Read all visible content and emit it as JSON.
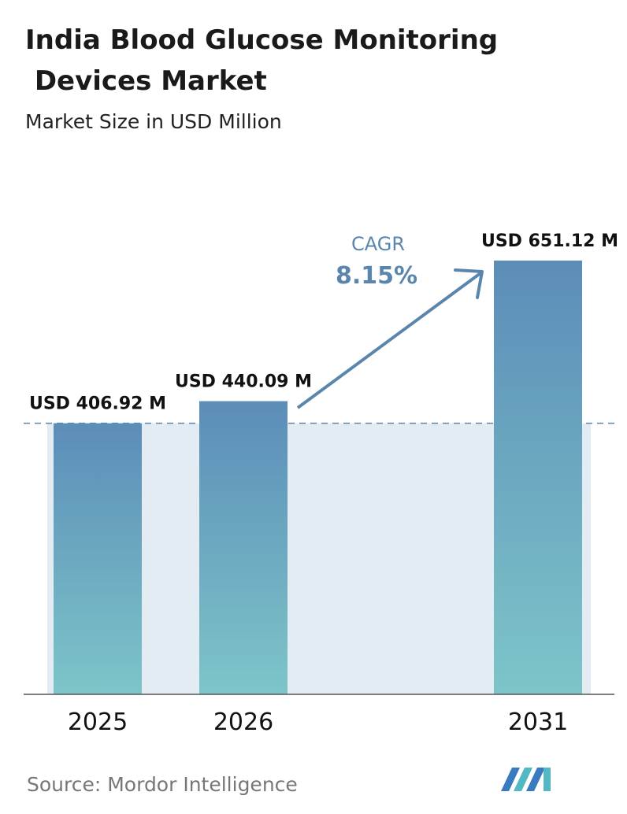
{
  "chart_data": {
    "type": "bar",
    "title": "India Blood Glucose Monitoring Devices Market",
    "subtitle": "Market Size in USD Million",
    "categories": [
      "2025",
      "2026",
      "2031"
    ],
    "values": [
      406.92,
      440.09,
      651.12
    ],
    "value_labels": [
      "USD 406.92 M",
      "USD 440.09 M",
      "USD 651.12 M"
    ],
    "annotation": {
      "label": "CAGR",
      "value": "8.15%"
    },
    "source": "Source: Mordor Intelligence"
  }
}
